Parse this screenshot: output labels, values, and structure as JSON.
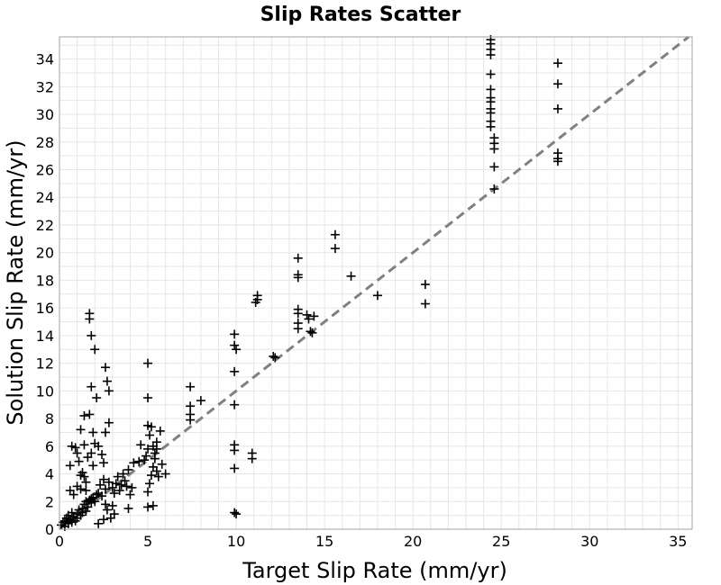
{
  "chart_data": {
    "type": "scatter",
    "title": "Slip Rates Scatter",
    "xlabel": "Target Slip Rate (mm/yr)",
    "ylabel": "Solution Slip Rate (mm/yr)",
    "xlim": [
      0,
      35.8
    ],
    "ylim": [
      0,
      35.6
    ],
    "xticks": [
      0,
      5,
      10,
      15,
      20,
      25,
      30,
      35
    ],
    "yticks": [
      0,
      2,
      4,
      6,
      8,
      10,
      12,
      14,
      16,
      18,
      20,
      22,
      24,
      26,
      28,
      30,
      32,
      34
    ],
    "grid": true,
    "marker": "plus",
    "reference_line": {
      "type": "identity",
      "style": "dashed",
      "color": "#808080"
    },
    "points": [
      [
        0.1,
        0.3
      ],
      [
        0.2,
        0.5
      ],
      [
        0.3,
        0.6
      ],
      [
        0.3,
        0.2
      ],
      [
        0.4,
        0.8
      ],
      [
        0.5,
        0.4
      ],
      [
        0.5,
        1.0
      ],
      [
        0.6,
        0.7
      ],
      [
        0.7,
        0.5
      ],
      [
        0.7,
        1.2
      ],
      [
        0.8,
        0.9
      ],
      [
        0.9,
        0.6
      ],
      [
        1.0,
        1.1
      ],
      [
        1.0,
        0.8
      ],
      [
        1.1,
        1.4
      ],
      [
        1.2,
        1.0
      ],
      [
        1.3,
        1.5
      ],
      [
        1.3,
        1.2
      ],
      [
        1.4,
        1.8
      ],
      [
        1.5,
        1.3
      ],
      [
        1.5,
        2.0
      ],
      [
        1.6,
        1.6
      ],
      [
        1.7,
        2.1
      ],
      [
        1.8,
        1.9
      ],
      [
        1.9,
        2.3
      ],
      [
        2.0,
        2.0
      ],
      [
        2.1,
        2.5
      ],
      [
        0.6,
        2.8
      ],
      [
        0.8,
        2.5
      ],
      [
        1.0,
        3.1
      ],
      [
        1.2,
        3.9
      ],
      [
        1.3,
        4.1
      ],
      [
        1.4,
        3.8
      ],
      [
        1.5,
        3.4
      ],
      [
        0.6,
        4.6
      ],
      [
        0.7,
        6.0
      ],
      [
        0.9,
        5.9
      ],
      [
        1.0,
        5.5
      ],
      [
        1.1,
        4.9
      ],
      [
        1.2,
        7.2
      ],
      [
        1.4,
        6.1
      ],
      [
        1.4,
        8.2
      ],
      [
        1.6,
        5.2
      ],
      [
        1.7,
        8.3
      ],
      [
        1.8,
        5.5
      ],
      [
        1.9,
        7.0
      ],
      [
        1.9,
        4.6
      ],
      [
        2.0,
        6.2
      ],
      [
        2.2,
        6.0
      ],
      [
        2.1,
        9.5
      ],
      [
        2.3,
        3.2
      ],
      [
        2.4,
        5.4
      ],
      [
        2.5,
        4.8
      ],
      [
        2.6,
        7.0
      ],
      [
        1.7,
        15.6
      ],
      [
        1.7,
        15.2
      ],
      [
        1.8,
        14.0
      ],
      [
        2.0,
        13.0
      ],
      [
        1.8,
        10.3
      ],
      [
        2.6,
        11.7
      ],
      [
        2.7,
        10.7
      ],
      [
        2.8,
        10.0
      ],
      [
        2.8,
        7.7
      ],
      [
        1.2,
        2.9
      ],
      [
        1.5,
        2.8
      ],
      [
        1.8,
        2.2
      ],
      [
        2.2,
        2.6
      ],
      [
        2.4,
        2.4
      ],
      [
        2.5,
        3.6
      ],
      [
        2.6,
        2.9
      ],
      [
        2.8,
        3.4
      ],
      [
        3.0,
        3.0
      ],
      [
        3.1,
        2.6
      ],
      [
        3.2,
        3.3
      ],
      [
        3.3,
        3.8
      ],
      [
        3.4,
        2.8
      ],
      [
        3.5,
        3.2
      ],
      [
        3.6,
        4.0
      ],
      [
        3.7,
        3.5
      ],
      [
        3.8,
        3.1
      ],
      [
        3.9,
        4.3
      ],
      [
        4.0,
        2.5
      ],
      [
        4.1,
        3.0
      ],
      [
        4.2,
        4.8
      ],
      [
        3.0,
        1.7
      ],
      [
        3.1,
        1.1
      ],
      [
        2.6,
        1.8
      ],
      [
        2.7,
        1.4
      ],
      [
        2.9,
        0.8
      ],
      [
        2.5,
        0.7
      ],
      [
        2.2,
        0.4
      ],
      [
        3.9,
        1.5
      ],
      [
        4.5,
        4.9
      ],
      [
        4.6,
        6.1
      ],
      [
        4.8,
        5.0
      ],
      [
        4.9,
        5.3
      ],
      [
        5.0,
        5.8
      ],
      [
        5.0,
        7.5
      ],
      [
        5.1,
        6.8
      ],
      [
        5.2,
        7.4
      ],
      [
        5.0,
        9.5
      ],
      [
        5.0,
        12.0
      ],
      [
        5.0,
        2.7
      ],
      [
        5.1,
        3.3
      ],
      [
        5.2,
        3.9
      ],
      [
        5.3,
        4.5
      ],
      [
        5.4,
        5.1
      ],
      [
        5.4,
        5.5
      ],
      [
        5.5,
        5.8
      ],
      [
        5.5,
        6.3
      ],
      [
        5.6,
        3.8
      ],
      [
        5.7,
        7.1
      ],
      [
        5.8,
        4.7
      ],
      [
        6.0,
        4.0
      ],
      [
        5.0,
        1.6
      ],
      [
        5.3,
        1.7
      ],
      [
        5.5,
        4.2
      ],
      [
        5.3,
        6.0
      ],
      [
        7.4,
        10.3
      ],
      [
        7.4,
        8.9
      ],
      [
        7.4,
        8.3
      ],
      [
        7.4,
        7.9
      ],
      [
        8.0,
        9.3
      ],
      [
        9.9,
        14.1
      ],
      [
        9.9,
        13.3
      ],
      [
        10.0,
        13.0
      ],
      [
        9.9,
        11.4
      ],
      [
        9.9,
        9.0
      ],
      [
        9.9,
        6.1
      ],
      [
        9.9,
        5.7
      ],
      [
        9.9,
        4.4
      ],
      [
        9.9,
        1.2
      ],
      [
        10.0,
        1.1
      ],
      [
        10.9,
        5.5
      ],
      [
        10.9,
        5.1
      ],
      [
        11.2,
        16.9
      ],
      [
        11.2,
        16.6
      ],
      [
        11.1,
        16.4
      ],
      [
        12.1,
        12.5
      ],
      [
        12.2,
        12.4
      ],
      [
        13.5,
        19.6
      ],
      [
        13.5,
        18.4
      ],
      [
        13.5,
        18.2
      ],
      [
        13.5,
        15.9
      ],
      [
        13.5,
        15.6
      ],
      [
        13.5,
        14.9
      ],
      [
        13.5,
        14.5
      ],
      [
        14.0,
        15.5
      ],
      [
        14.1,
        15.2
      ],
      [
        14.2,
        14.3
      ],
      [
        14.3,
        14.2
      ],
      [
        14.4,
        15.4
      ],
      [
        15.6,
        21.3
      ],
      [
        15.6,
        20.3
      ],
      [
        16.5,
        18.3
      ],
      [
        18.0,
        16.9
      ],
      [
        20.7,
        17.7
      ],
      [
        20.7,
        16.3
      ],
      [
        24.4,
        35.4
      ],
      [
        24.4,
        35.1
      ],
      [
        24.4,
        34.7
      ],
      [
        24.4,
        34.3
      ],
      [
        24.4,
        32.9
      ],
      [
        24.4,
        31.8
      ],
      [
        24.4,
        31.2
      ],
      [
        24.4,
        30.9
      ],
      [
        24.4,
        30.4
      ],
      [
        24.4,
        30.1
      ],
      [
        24.4,
        29.5
      ],
      [
        24.4,
        29.1
      ],
      [
        24.6,
        28.3
      ],
      [
        24.6,
        27.9
      ],
      [
        24.6,
        27.5
      ],
      [
        24.6,
        26.2
      ],
      [
        24.6,
        24.6
      ],
      [
        28.2,
        33.7
      ],
      [
        28.2,
        32.2
      ],
      [
        28.2,
        30.4
      ],
      [
        28.2,
        27.2
      ],
      [
        28.2,
        26.8
      ],
      [
        28.2,
        26.6
      ]
    ]
  }
}
